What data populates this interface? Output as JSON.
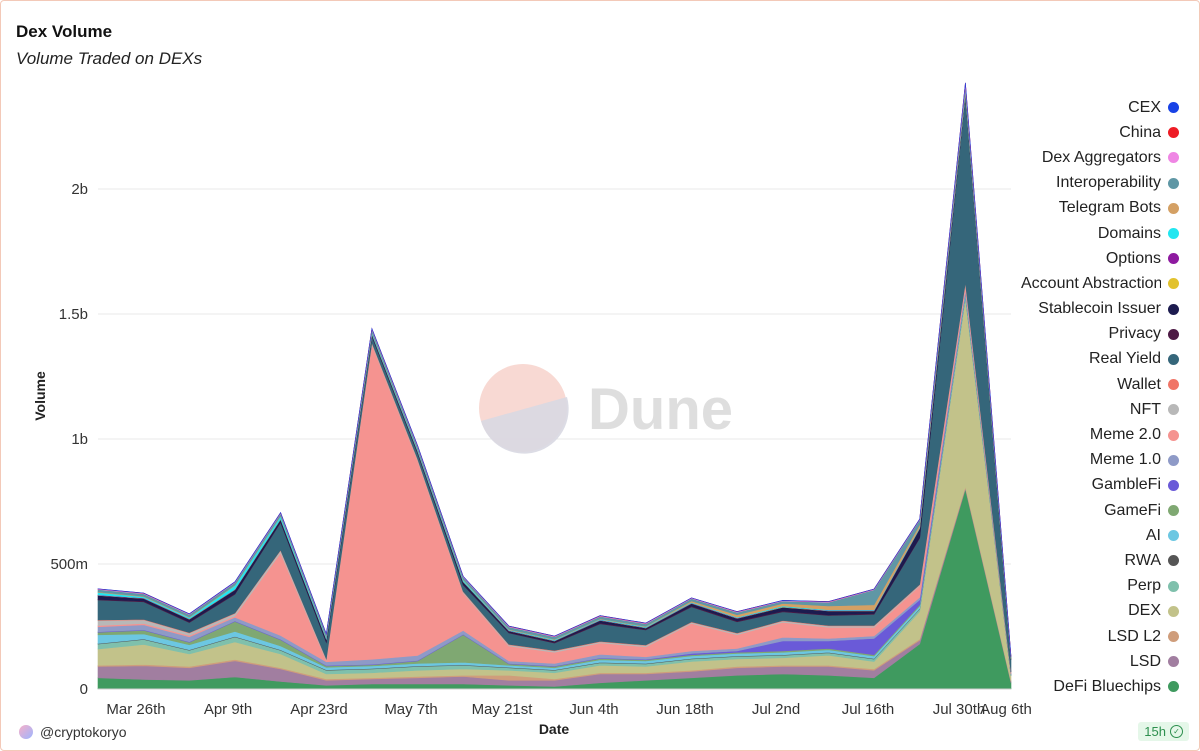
{
  "header": {
    "title": "Dex Volume",
    "subtitle": "Volume Traded on DEXs"
  },
  "footer": {
    "user": "@cryptokoryo",
    "refresh": "15h"
  },
  "watermark": "Dune",
  "chart_data": {
    "type": "area",
    "stacked": true,
    "xlabel": "Date",
    "ylabel": "Volume",
    "ylim": [
      0,
      2400000000
    ],
    "yticks": [
      0,
      500000000,
      1000000000,
      1500000000,
      2000000000
    ],
    "ytick_labels": [
      "0",
      "500m",
      "1b",
      "1.5b",
      "2b"
    ],
    "x_tick_labels": [
      "Mar 26th",
      "Apr 9th",
      "Apr 23rd",
      "May 7th",
      "May 21st",
      "Jun 4th",
      "Jun 18th",
      "Jul 2nd",
      "Jul 16th",
      "Jul 30th",
      "Aug 6th"
    ],
    "x": [
      "Mar 19th",
      "Mar 26th",
      "Apr 2nd",
      "Apr 9th",
      "Apr 16th",
      "Apr 23rd",
      "Apr 30th",
      "May 7th",
      "May 14th",
      "May 21st",
      "May 28th",
      "Jun 4th",
      "Jun 11th",
      "Jun 18th",
      "Jun 25th",
      "Jul 2nd",
      "Jul 9th",
      "Jul 16th",
      "Jul 23rd",
      "Jul 30th",
      "Aug 6th"
    ],
    "grid": true,
    "legend_position": "right",
    "series": [
      {
        "name": "DeFi Bluechips",
        "color": "#3f9a5f",
        "values": [
          45000000,
          38000000,
          35000000,
          48000000,
          30000000,
          15000000,
          20000000,
          20000000,
          20000000,
          15000000,
          10000000,
          25000000,
          35000000,
          45000000,
          55000000,
          60000000,
          55000000,
          45000000,
          180000000,
          800000000,
          25000000
        ]
      },
      {
        "name": "LSD",
        "color": "#a17ea0",
        "values": [
          45000000,
          55000000,
          50000000,
          65000000,
          50000000,
          20000000,
          20000000,
          25000000,
          30000000,
          20000000,
          25000000,
          35000000,
          25000000,
          25000000,
          30000000,
          30000000,
          35000000,
          30000000,
          15000000,
          5000000,
          5000000
        ]
      },
      {
        "name": "LSD L2",
        "color": "#cf9d7b",
        "values": [
          5000000,
          5000000,
          5000000,
          5000000,
          5000000,
          5000000,
          5000000,
          5000000,
          5000000,
          20000000,
          5000000,
          5000000,
          5000000,
          5000000,
          5000000,
          5000000,
          5000000,
          5000000,
          5000000,
          5000000,
          2000000
        ]
      },
      {
        "name": "DEX",
        "color": "#c2c28a",
        "values": [
          65000000,
          80000000,
          50000000,
          70000000,
          55000000,
          20000000,
          20000000,
          25000000,
          25000000,
          20000000,
          25000000,
          30000000,
          25000000,
          35000000,
          30000000,
          30000000,
          40000000,
          30000000,
          110000000,
          750000000,
          20000000
        ]
      },
      {
        "name": "Perp",
        "color": "#7fc0ac",
        "values": [
          20000000,
          20000000,
          15000000,
          20000000,
          15000000,
          15000000,
          15000000,
          15000000,
          15000000,
          10000000,
          10000000,
          10000000,
          10000000,
          10000000,
          10000000,
          10000000,
          10000000,
          10000000,
          10000000,
          10000000,
          2000000
        ]
      },
      {
        "name": "RWA",
        "color": "#555555",
        "values": [
          2000000,
          2000000,
          2000000,
          2000000,
          2000000,
          2000000,
          2000000,
          2000000,
          2000000,
          2000000,
          2000000,
          2000000,
          2000000,
          2000000,
          2000000,
          2000000,
          2000000,
          2000000,
          2000000,
          2000000,
          1000000
        ]
      },
      {
        "name": "AI",
        "color": "#6cc7e2",
        "values": [
          35000000,
          20000000,
          20000000,
          20000000,
          15000000,
          10000000,
          10000000,
          10000000,
          10000000,
          8000000,
          8000000,
          10000000,
          10000000,
          10000000,
          10000000,
          10000000,
          10000000,
          10000000,
          10000000,
          10000000,
          2000000
        ]
      },
      {
        "name": "GameFi",
        "color": "#7fa872",
        "values": [
          10000000,
          15000000,
          10000000,
          40000000,
          25000000,
          5000000,
          5000000,
          10000000,
          110000000,
          5000000,
          5000000,
          5000000,
          5000000,
          5000000,
          5000000,
          5000000,
          5000000,
          5000000,
          5000000,
          5000000,
          1000000
        ]
      },
      {
        "name": "GambleFi",
        "color": "#6a5ad8",
        "values": [
          2000000,
          2000000,
          2000000,
          2000000,
          2000000,
          2000000,
          2000000,
          2000000,
          2000000,
          2000000,
          2000000,
          2000000,
          2000000,
          5000000,
          5000000,
          40000000,
          30000000,
          65000000,
          20000000,
          2000000,
          1000000
        ]
      },
      {
        "name": "Meme 1.0",
        "color": "#8e9ac7",
        "values": [
          20000000,
          20000000,
          20000000,
          15000000,
          15000000,
          15000000,
          20000000,
          20000000,
          15000000,
          10000000,
          10000000,
          15000000,
          10000000,
          10000000,
          10000000,
          15000000,
          10000000,
          10000000,
          10000000,
          10000000,
          2000000
        ]
      },
      {
        "name": "Meme 2.0",
        "color": "#f59390",
        "values": [
          5000000,
          5000000,
          5000000,
          5000000,
          330000000,
          5000000,
          1260000000,
          780000000,
          150000000,
          60000000,
          45000000,
          45000000,
          40000000,
          110000000,
          55000000,
          60000000,
          45000000,
          35000000,
          45000000,
          20000000,
          5000000
        ]
      },
      {
        "name": "NFT",
        "color": "#b8b8b8",
        "values": [
          20000000,
          15000000,
          10000000,
          10000000,
          10000000,
          5000000,
          5000000,
          5000000,
          5000000,
          5000000,
          5000000,
          5000000,
          5000000,
          5000000,
          5000000,
          5000000,
          5000000,
          5000000,
          5000000,
          5000000,
          1000000
        ]
      },
      {
        "name": "Wallet",
        "color": "#f07567",
        "values": [
          2000000,
          2000000,
          2000000,
          2000000,
          2000000,
          2000000,
          2000000,
          2000000,
          2000000,
          2000000,
          2000000,
          2000000,
          2000000,
          2000000,
          2000000,
          2000000,
          2000000,
          2000000,
          2000000,
          2000000,
          1000000
        ]
      },
      {
        "name": "Real Yield",
        "color": "#35667a",
        "values": [
          80000000,
          70000000,
          40000000,
          75000000,
          110000000,
          65000000,
          25000000,
          22000000,
          25000000,
          45000000,
          30000000,
          70000000,
          60000000,
          60000000,
          45000000,
          35000000,
          40000000,
          45000000,
          185000000,
          750000000,
          50000000
        ]
      },
      {
        "name": "Privacy",
        "color": "#4d1a45",
        "values": [
          3000000,
          3000000,
          3000000,
          3000000,
          3000000,
          3000000,
          3000000,
          3000000,
          3000000,
          3000000,
          3000000,
          3000000,
          3000000,
          3000000,
          3000000,
          3000000,
          3000000,
          3000000,
          3000000,
          3000000,
          1000000
        ]
      },
      {
        "name": "Stablecoin Issuer",
        "color": "#1c1b4f",
        "values": [
          15000000,
          10000000,
          10000000,
          15000000,
          10000000,
          10000000,
          5000000,
          5000000,
          10000000,
          5000000,
          5000000,
          10000000,
          5000000,
          10000000,
          10000000,
          15000000,
          15000000,
          10000000,
          35000000,
          5000000,
          2000000
        ]
      },
      {
        "name": "Account Abstraction",
        "color": "#e2c22e",
        "values": [
          1000000,
          1000000,
          1000000,
          1000000,
          1000000,
          1000000,
          1000000,
          1000000,
          1000000,
          1000000,
          1000000,
          1000000,
          1000000,
          1000000,
          1000000,
          1000000,
          1000000,
          1000000,
          1000000,
          1000000,
          500000
        ]
      },
      {
        "name": "Options",
        "color": "#8e1aa0",
        "values": [
          1000000,
          1000000,
          1000000,
          1000000,
          1000000,
          1000000,
          1000000,
          1000000,
          1000000,
          1000000,
          1000000,
          1000000,
          1000000,
          1000000,
          1000000,
          1000000,
          1000000,
          1000000,
          1000000,
          1000000,
          500000
        ]
      },
      {
        "name": "Domains",
        "color": "#22e6f0",
        "values": [
          10000000,
          5000000,
          5000000,
          15000000,
          10000000,
          5000000,
          5000000,
          5000000,
          5000000,
          3000000,
          3000000,
          3000000,
          3000000,
          3000000,
          3000000,
          3000000,
          3000000,
          3000000,
          3000000,
          3000000,
          500000
        ]
      },
      {
        "name": "Telegram Bots",
        "color": "#d4a064",
        "values": [
          2000000,
          2000000,
          2000000,
          2000000,
          2000000,
          2000000,
          2000000,
          2000000,
          2000000,
          2000000,
          2000000,
          2000000,
          2000000,
          5000000,
          10000000,
          10000000,
          15000000,
          20000000,
          10000000,
          5000000,
          1000000
        ]
      },
      {
        "name": "Interoperability",
        "color": "#5f97a5",
        "values": [
          10000000,
          10000000,
          10000000,
          10000000,
          10000000,
          10000000,
          10000000,
          10000000,
          10000000,
          10000000,
          10000000,
          10000000,
          10000000,
          10000000,
          10000000,
          10000000,
          15000000,
          60000000,
          20000000,
          20000000,
          5000000
        ]
      },
      {
        "name": "Dex Aggregators",
        "color": "#ef86e4",
        "values": [
          2000000,
          2000000,
          2000000,
          2000000,
          2000000,
          2000000,
          3000000,
          3000000,
          2000000,
          2000000,
          2000000,
          2000000,
          2000000,
          2000000,
          2000000,
          2000000,
          2000000,
          2000000,
          2000000,
          10000000,
          1000000
        ]
      },
      {
        "name": "China",
        "color": "#ee1c25",
        "values": [
          500000,
          500000,
          500000,
          500000,
          500000,
          500000,
          500000,
          500000,
          500000,
          500000,
          500000,
          500000,
          500000,
          500000,
          500000,
          500000,
          500000,
          500000,
          500000,
          500000,
          200000
        ]
      },
      {
        "name": "CEX",
        "color": "#1842e6",
        "values": [
          500000,
          500000,
          500000,
          500000,
          500000,
          500000,
          500000,
          500000,
          500000,
          500000,
          500000,
          500000,
          500000,
          500000,
          500000,
          500000,
          500000,
          500000,
          500000,
          500000,
          200000
        ]
      }
    ],
    "legend_order": [
      "CEX",
      "China",
      "Dex Aggregators",
      "Interoperability",
      "Telegram Bots",
      "Domains",
      "Options",
      "Account Abstraction",
      "Stablecoin Issuer",
      "Privacy",
      "Real Yield",
      "Wallet",
      "NFT",
      "Meme 2.0",
      "Meme 1.0",
      "GambleFi",
      "GameFi",
      "AI",
      "RWA",
      "Perp",
      "DEX",
      "LSD L2",
      "LSD",
      "DeFi Bluechips"
    ]
  }
}
